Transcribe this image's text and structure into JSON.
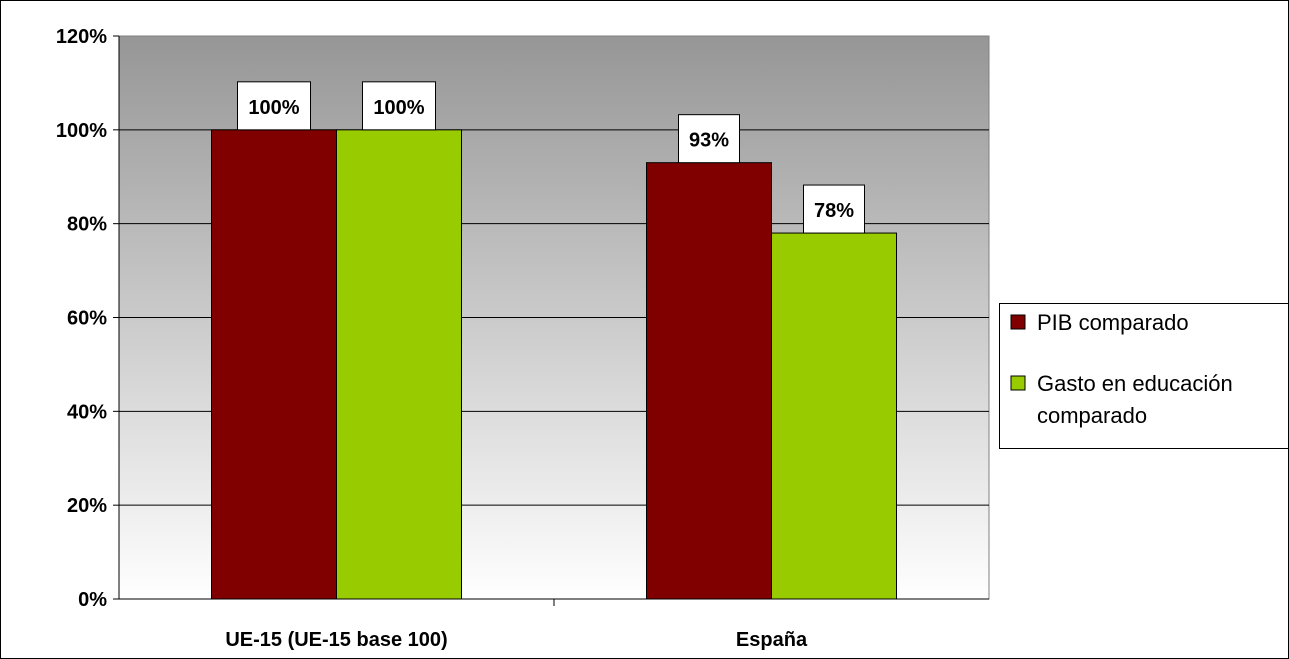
{
  "chart_data": {
    "type": "bar",
    "title": "",
    "xlabel": "",
    "ylabel": "",
    "categories": [
      "UE-15 (UE-15 base 100)",
      "España"
    ],
    "series": [
      {
        "name": "PIB comparado",
        "values": [
          100,
          93
        ],
        "color": "#800000"
      },
      {
        "name": "Gasto en educación comparado",
        "values": [
          100,
          78
        ],
        "color": "#99cc00"
      }
    ],
    "data_labels": [
      [
        "100%",
        "93%"
      ],
      [
        "100%",
        "78%"
      ]
    ],
    "ylim": [
      0,
      120
    ],
    "yticks": [
      "0%",
      "20%",
      "40%",
      "60%",
      "80%",
      "100%",
      "120%"
    ],
    "grid": true,
    "legend": {
      "position": "right",
      "entries": [
        {
          "lines": [
            "PIB comparado"
          ]
        },
        {
          "lines": [
            "Gasto en educación",
            "comparado"
          ]
        }
      ]
    },
    "plot_background": "gradient grey (top) to white (bottom)"
  }
}
